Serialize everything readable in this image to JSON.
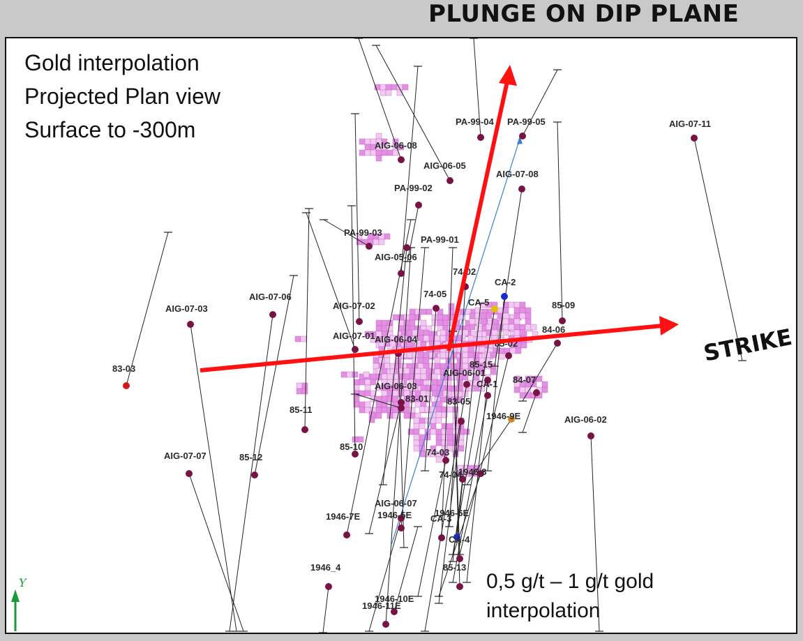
{
  "header": {
    "title": "PLUNGE ON DIP PLANE"
  },
  "info_box": {
    "lines": [
      "Gold interpolation",
      "Projected Plan view",
      "Surface to -300m"
    ]
  },
  "legend": {
    "lines": [
      "0,5 g/t – 1 g/t gold",
      "interpolation"
    ]
  },
  "strike_label": "STRIKE",
  "axis_label": "Y",
  "colors": {
    "arrow": "#ff1111",
    "collar": "#7a1345",
    "interpolation_fill": "#e38fe3",
    "interpolation_light": "#f1c9f1",
    "trace": "#222222",
    "axis": "#1a9a3a"
  },
  "drill_holes": [
    {
      "id": "AIG-07-11"
    },
    {
      "id": "PA-99-05"
    },
    {
      "id": "PA-99-04"
    },
    {
      "id": "AIG-06-08"
    },
    {
      "id": "AIG-06-05"
    },
    {
      "id": "AIG-07-08"
    },
    {
      "id": "PA-99-02"
    },
    {
      "id": "PA-99-03"
    },
    {
      "id": "PA-99-01"
    },
    {
      "id": "AIG-05-06"
    },
    {
      "id": "74-02"
    },
    {
      "id": "CA-2"
    },
    {
      "id": "74-05"
    },
    {
      "id": "85-09"
    },
    {
      "id": "AIG-07-03"
    },
    {
      "id": "AIG-07-06"
    },
    {
      "id": "AIG-07-02"
    },
    {
      "id": "CA-5"
    },
    {
      "id": "84-06"
    },
    {
      "id": "AIG-07-01"
    },
    {
      "id": "AIG-06-04"
    },
    {
      "id": "85-02"
    },
    {
      "id": "83-03"
    },
    {
      "id": "85-15"
    },
    {
      "id": "AIG-06-01"
    },
    {
      "id": "CA-1"
    },
    {
      "id": "84-07"
    },
    {
      "id": "AIG-06-03"
    },
    {
      "id": "83-01"
    },
    {
      "id": "83-05"
    },
    {
      "id": "85-11"
    },
    {
      "id": "1946-9E"
    },
    {
      "id": "AIG-06-02"
    },
    {
      "id": "85-10"
    },
    {
      "id": "AIG-07-07"
    },
    {
      "id": "85-12"
    },
    {
      "id": "74-03"
    },
    {
      "id": "74-04"
    },
    {
      "id": "1946-8"
    },
    {
      "id": "AIG-06-07"
    },
    {
      "id": "1946-7E"
    },
    {
      "id": "1946-5E"
    },
    {
      "id": "1946-6E"
    },
    {
      "id": "CA-3"
    },
    {
      "id": "CA-4"
    },
    {
      "id": "85-13"
    },
    {
      "id": "1946_4"
    },
    {
      "id": "1946-10E"
    },
    {
      "id": "1946-11E"
    }
  ]
}
